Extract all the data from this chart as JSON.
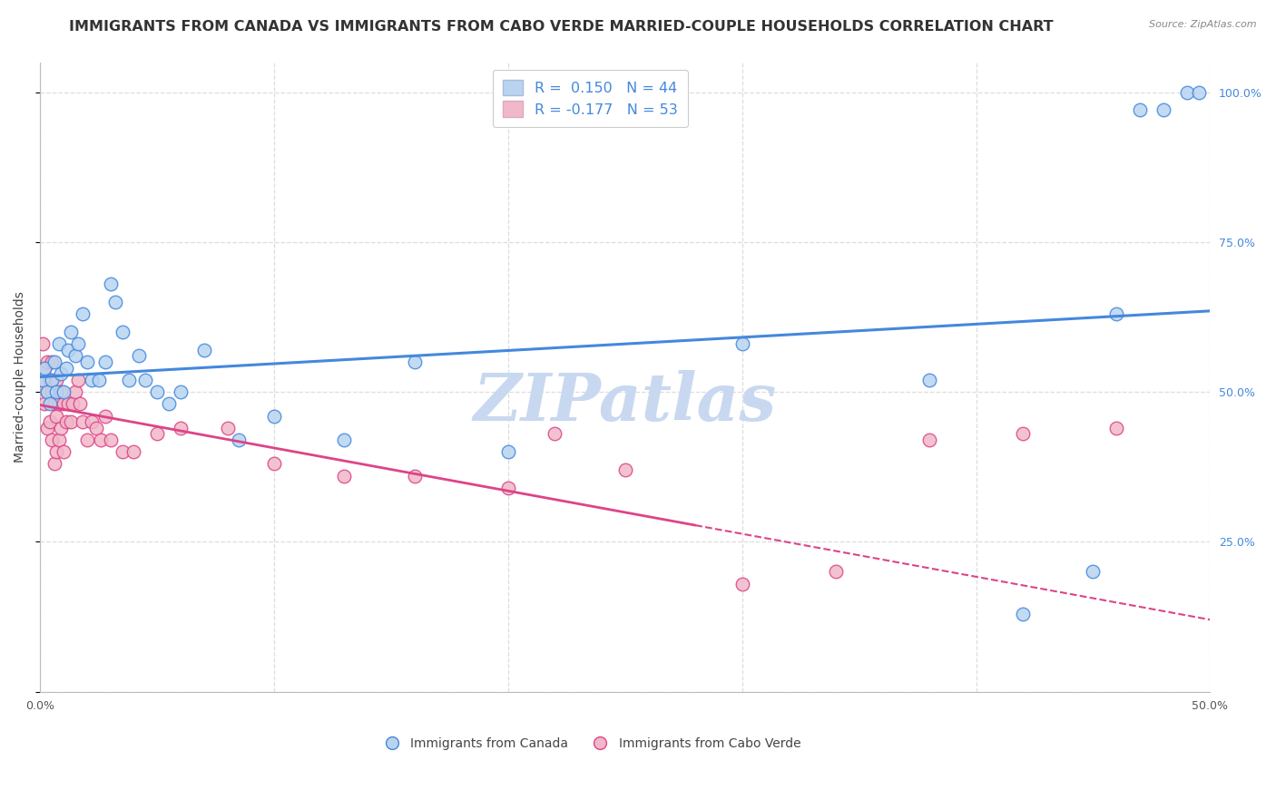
{
  "title": "IMMIGRANTS FROM CANADA VS IMMIGRANTS FROM CABO VERDE MARRIED-COUPLE HOUSEHOLDS CORRELATION CHART",
  "source": "Source: ZipAtlas.com",
  "ylabel": "Married-couple Households",
  "x_min": 0.0,
  "x_max": 0.5,
  "y_min": 0.0,
  "y_max": 1.05,
  "x_ticks": [
    0.0,
    0.1,
    0.2,
    0.3,
    0.4,
    0.5
  ],
  "x_tick_labels": [
    "0.0%",
    "",
    "",
    "",
    "",
    "50.0%"
  ],
  "y_ticks": [
    0.0,
    0.25,
    0.5,
    0.75,
    1.0
  ],
  "y_tick_labels_right": [
    "",
    "25.0%",
    "50.0%",
    "75.0%",
    "100.0%"
  ],
  "canada_color": "#b8d4f0",
  "canada_color_line": "#4488dd",
  "caboverde_color": "#f0b8c8",
  "caboverde_color_line": "#dd4488",
  "canada_R": 0.15,
  "canada_N": 44,
  "caboverde_R": -0.177,
  "caboverde_N": 53,
  "watermark": "ZIPatlas",
  "canada_x": [
    0.001,
    0.002,
    0.003,
    0.004,
    0.005,
    0.006,
    0.007,
    0.008,
    0.009,
    0.01,
    0.011,
    0.012,
    0.013,
    0.015,
    0.016,
    0.018,
    0.02,
    0.022,
    0.025,
    0.028,
    0.03,
    0.032,
    0.035,
    0.038,
    0.042,
    0.045,
    0.05,
    0.055,
    0.06,
    0.07,
    0.085,
    0.1,
    0.13,
    0.16,
    0.2,
    0.3,
    0.38,
    0.42,
    0.45,
    0.46,
    0.47,
    0.48,
    0.49,
    0.495
  ],
  "canada_y": [
    0.52,
    0.54,
    0.5,
    0.48,
    0.52,
    0.55,
    0.5,
    0.58,
    0.53,
    0.5,
    0.54,
    0.57,
    0.6,
    0.56,
    0.58,
    0.63,
    0.55,
    0.52,
    0.52,
    0.55,
    0.68,
    0.65,
    0.6,
    0.52,
    0.56,
    0.52,
    0.5,
    0.48,
    0.5,
    0.57,
    0.42,
    0.46,
    0.42,
    0.55,
    0.4,
    0.58,
    0.52,
    0.13,
    0.2,
    0.63,
    0.97,
    0.97,
    1.0,
    1.0
  ],
  "caboverde_x": [
    0.001,
    0.001,
    0.002,
    0.002,
    0.003,
    0.003,
    0.003,
    0.004,
    0.004,
    0.005,
    0.005,
    0.005,
    0.006,
    0.006,
    0.007,
    0.007,
    0.007,
    0.008,
    0.008,
    0.009,
    0.009,
    0.01,
    0.01,
    0.011,
    0.012,
    0.013,
    0.014,
    0.015,
    0.016,
    0.017,
    0.018,
    0.02,
    0.022,
    0.024,
    0.026,
    0.028,
    0.03,
    0.035,
    0.04,
    0.05,
    0.06,
    0.08,
    0.1,
    0.13,
    0.16,
    0.2,
    0.22,
    0.25,
    0.3,
    0.34,
    0.38,
    0.42,
    0.46
  ],
  "caboverde_y": [
    0.58,
    0.52,
    0.54,
    0.48,
    0.55,
    0.5,
    0.44,
    0.52,
    0.45,
    0.55,
    0.5,
    0.42,
    0.48,
    0.38,
    0.52,
    0.46,
    0.4,
    0.48,
    0.42,
    0.5,
    0.44,
    0.48,
    0.4,
    0.45,
    0.48,
    0.45,
    0.48,
    0.5,
    0.52,
    0.48,
    0.45,
    0.42,
    0.45,
    0.44,
    0.42,
    0.46,
    0.42,
    0.4,
    0.4,
    0.43,
    0.44,
    0.44,
    0.38,
    0.36,
    0.36,
    0.34,
    0.43,
    0.37,
    0.18,
    0.2,
    0.42,
    0.43,
    0.44
  ],
  "background_color": "#ffffff",
  "grid_color": "#dddddd",
  "title_fontsize": 11.5,
  "axis_label_fontsize": 10,
  "tick_fontsize": 9,
  "watermark_color": "#c8d8f0",
  "watermark_fontsize": 52
}
